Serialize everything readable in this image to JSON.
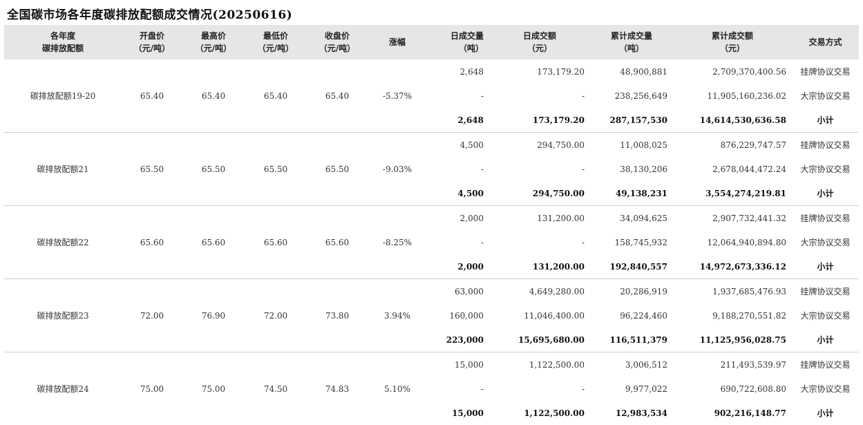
{
  "title": "全国碳市场各年度碳排放配额成交情况(20250616)",
  "headers": {
    "name": [
      "各年度",
      "碳排放配额"
    ],
    "open": [
      "开盘价",
      "（元/吨）"
    ],
    "high": [
      "最高价",
      "（元/吨）"
    ],
    "low": [
      "最低价",
      "（元/吨）"
    ],
    "close": [
      "收盘价",
      "（元/吨）"
    ],
    "change": [
      "涨幅"
    ],
    "daily_vol": [
      "日成交量",
      "（吨）"
    ],
    "daily_amt": [
      "日成交额",
      "（元）"
    ],
    "cum_vol": [
      "累计成交量",
      "（吨）"
    ],
    "cum_amt": [
      "累计成交额",
      "（元）"
    ],
    "method": [
      "交易方式"
    ]
  },
  "groups": [
    {
      "name": "碳排放配额19-20",
      "open": "65.40",
      "high": "65.40",
      "low": "65.40",
      "close": "65.40",
      "change": "-5.37%",
      "rows": [
        {
          "daily_vol": "2,648",
          "daily_amt": "173,179.20",
          "cum_vol": "48,900,881",
          "cum_amt": "2,709,370,400.56",
          "method": "挂牌协议交易"
        },
        {
          "daily_vol": "-",
          "daily_amt": "-",
          "cum_vol": "238,256,649",
          "cum_amt": "11,905,160,236.02",
          "method": "大宗协议交易"
        },
        {
          "daily_vol": "2,648",
          "daily_amt": "173,179.20",
          "cum_vol": "287,157,530",
          "cum_amt": "14,614,530,636.58",
          "method": "小计"
        }
      ]
    },
    {
      "name": "碳排放配额21",
      "open": "65.50",
      "high": "65.50",
      "low": "65.50",
      "close": "65.50",
      "change": "-9.03%",
      "rows": [
        {
          "daily_vol": "4,500",
          "daily_amt": "294,750.00",
          "cum_vol": "11,008,025",
          "cum_amt": "876,229,747.57",
          "method": "挂牌协议交易"
        },
        {
          "daily_vol": "-",
          "daily_amt": "-",
          "cum_vol": "38,130,206",
          "cum_amt": "2,678,044,472.24",
          "method": "大宗协议交易"
        },
        {
          "daily_vol": "4,500",
          "daily_amt": "294,750.00",
          "cum_vol": "49,138,231",
          "cum_amt": "3,554,274,219.81",
          "method": "小计"
        }
      ]
    },
    {
      "name": "碳排放配额22",
      "open": "65.60",
      "high": "65.60",
      "low": "65.60",
      "close": "65.60",
      "change": "-8.25%",
      "rows": [
        {
          "daily_vol": "2,000",
          "daily_amt": "131,200.00",
          "cum_vol": "34,094,625",
          "cum_amt": "2,907,732,441.32",
          "method": "挂牌协议交易"
        },
        {
          "daily_vol": "-",
          "daily_amt": "-",
          "cum_vol": "158,745,932",
          "cum_amt": "12,064,940,894.80",
          "method": "大宗协议交易"
        },
        {
          "daily_vol": "2,000",
          "daily_amt": "131,200.00",
          "cum_vol": "192,840,557",
          "cum_amt": "14,972,673,336.12",
          "method": "小计"
        }
      ]
    },
    {
      "name": "碳排放配额23",
      "open": "72.00",
      "high": "76.90",
      "low": "72.00",
      "close": "73.80",
      "change": "3.94%",
      "rows": [
        {
          "daily_vol": "63,000",
          "daily_amt": "4,649,280.00",
          "cum_vol": "20,286,919",
          "cum_amt": "1,937,685,476.93",
          "method": "挂牌协议交易"
        },
        {
          "daily_vol": "160,000",
          "daily_amt": "11,046,400.00",
          "cum_vol": "96,224,460",
          "cum_amt": "9,188,270,551.82",
          "method": "大宗协议交易"
        },
        {
          "daily_vol": "223,000",
          "daily_amt": "15,695,680.00",
          "cum_vol": "116,511,379",
          "cum_amt": "11,125,956,028.75",
          "method": "小计"
        }
      ]
    },
    {
      "name": "碳排放配额24",
      "open": "75.00",
      "high": "75.00",
      "low": "74.50",
      "close": "74.83",
      "change": "5.10%",
      "rows": [
        {
          "daily_vol": "15,000",
          "daily_amt": "1,122,500.00",
          "cum_vol": "3,006,512",
          "cum_amt": "211,493,539.97",
          "method": "挂牌协议交易"
        },
        {
          "daily_vol": "-",
          "daily_amt": "-",
          "cum_vol": "9,977,022",
          "cum_amt": "690,722,608.80",
          "method": "大宗协议交易"
        },
        {
          "daily_vol": "15,000",
          "daily_amt": "1,122,500.00",
          "cum_vol": "12,983,534",
          "cum_amt": "902,216,148.77",
          "method": "小计"
        }
      ]
    }
  ]
}
